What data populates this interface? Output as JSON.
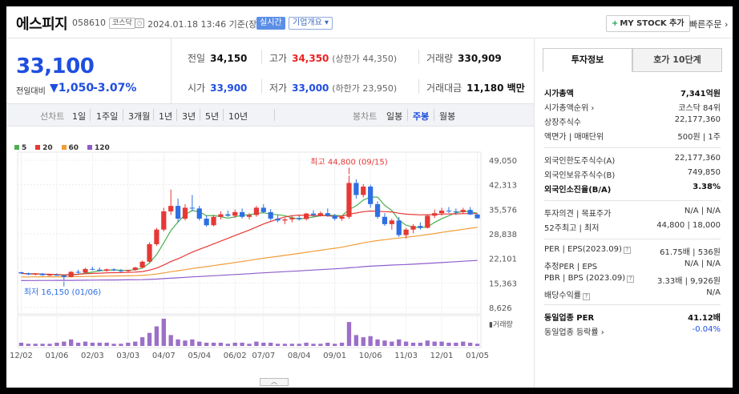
{
  "header": {
    "company": "에스피지",
    "code": "058610",
    "market": "코스닥",
    "datetime": "2024.01.18 13:46 기준(장중)",
    "realtime_label": "실시간",
    "overview_label": "기업개요 ▾",
    "mystock_label": "MY STOCK 추가",
    "quick_order_label": "빠른주문 ›"
  },
  "price": {
    "current": "33,100",
    "change_label": "전일대비",
    "change_arrow": "▼",
    "change_value": "1,050",
    "change_pct": "-3.07%"
  },
  "stats": {
    "prev_close": {
      "label": "전일",
      "value": "34,150"
    },
    "high": {
      "label": "고가",
      "value": "34,350",
      "sub": "(상한가 44,350)"
    },
    "volume": {
      "label": "거래량",
      "value": "330,909"
    },
    "open": {
      "label": "시가",
      "value": "33,900"
    },
    "low": {
      "label": "저가",
      "value": "33,000",
      "sub": "(하한가 23,950)"
    },
    "amount": {
      "label": "거래대금",
      "value": "11,180 백만"
    }
  },
  "periods": {
    "line_label": "선차트",
    "line_options": [
      "1일",
      "1주일",
      "3개월",
      "1년",
      "3년",
      "5년",
      "10년"
    ],
    "candle_label": "봉차트",
    "candle_options": [
      "일봉",
      "주봉",
      "월봉"
    ],
    "selected": "주봉"
  },
  "chart_data": {
    "type": "candlestick",
    "legend": [
      {
        "name": "5",
        "color": "#4caf50"
      },
      {
        "name": "20",
        "color": "#e53935"
      },
      {
        "name": "60",
        "color": "#f29d38"
      },
      {
        "name": "120",
        "color": "#8e5ccc"
      }
    ],
    "y_ticks": [
      "49,050",
      "42,313",
      "35,576",
      "28,838",
      "22,101",
      "15,363",
      "8,626"
    ],
    "ylim": [
      8626,
      49050
    ],
    "x_labels": [
      "12/02",
      "01/06",
      "02/03",
      "03/03",
      "04/07",
      "05/04",
      "06/02",
      "07/07",
      "08/04",
      "09/01",
      "10/06",
      "11/03",
      "12/01",
      "01/05"
    ],
    "high_label": "최고 44,800 (09/15)",
    "low_label": "최저 16,150 (01/06)",
    "volume_label": "거래량",
    "colors": {
      "up": "#e53935",
      "down": "#2f6fe4",
      "ma5": "#4caf50",
      "ma20": "#e53935",
      "ma60": "#f29d38",
      "ma120": "#8e5ccc"
    },
    "candles": [
      [
        18300,
        18400,
        17800,
        18000
      ],
      [
        18000,
        18200,
        17500,
        17700
      ],
      [
        17700,
        18000,
        17400,
        17900
      ],
      [
        17900,
        18100,
        17300,
        17500
      ],
      [
        17500,
        17800,
        17200,
        17600
      ],
      [
        17600,
        18000,
        17300,
        17400
      ],
      [
        17400,
        17600,
        16150,
        17000
      ],
      [
        17000,
        18600,
        16900,
        18400
      ],
      [
        18400,
        19000,
        17900,
        18200
      ],
      [
        18200,
        19500,
        18000,
        19200
      ],
      [
        19200,
        19800,
        18800,
        19000
      ],
      [
        19000,
        19600,
        18500,
        18700
      ],
      [
        18700,
        19300,
        18400,
        19100
      ],
      [
        19100,
        19400,
        18600,
        18800
      ],
      [
        18800,
        19200,
        18300,
        18600
      ],
      [
        18600,
        19000,
        18200,
        18900
      ],
      [
        18900,
        19800,
        18700,
        19600
      ],
      [
        19600,
        21500,
        19400,
        21200
      ],
      [
        21200,
        26500,
        21000,
        26000
      ],
      [
        26000,
        30500,
        25500,
        30000
      ],
      [
        30000,
        36000,
        29500,
        35000
      ],
      [
        35000,
        41000,
        34000,
        36500
      ],
      [
        36500,
        38500,
        32000,
        33000
      ],
      [
        33000,
        37000,
        32500,
        36000
      ],
      [
        36000,
        39500,
        35000,
        35800
      ],
      [
        35800,
        36500,
        32500,
        33000
      ],
      [
        33000,
        33800,
        30800,
        31200
      ],
      [
        31200,
        34000,
        30900,
        33500
      ],
      [
        33500,
        35000,
        32800,
        34200
      ],
      [
        34200,
        35200,
        33500,
        33800
      ],
      [
        33800,
        35500,
        33200,
        34800
      ],
      [
        34800,
        35800,
        33000,
        33500
      ],
      [
        33500,
        34500,
        32800,
        34000
      ],
      [
        34000,
        36500,
        33500,
        36000
      ],
      [
        36000,
        37000,
        34500,
        34800
      ],
      [
        34800,
        35600,
        32500,
        33000
      ],
      [
        33000,
        34000,
        32000,
        32500
      ],
      [
        32500,
        33200,
        31500,
        32800
      ],
      [
        32800,
        33800,
        32000,
        33200
      ],
      [
        33200,
        33800,
        32500,
        32900
      ],
      [
        32900,
        34600,
        32500,
        34400
      ],
      [
        34400,
        35300,
        33500,
        34000
      ],
      [
        34000,
        35000,
        33600,
        34500
      ],
      [
        34500,
        35800,
        33500,
        33800
      ],
      [
        33800,
        34300,
        32500,
        33000
      ],
      [
        33000,
        33800,
        32400,
        33500
      ],
      [
        33500,
        44800,
        33000,
        42800
      ],
      [
        42800,
        43800,
        38500,
        39500
      ],
      [
        39500,
        42500,
        38800,
        41800
      ],
      [
        41800,
        42300,
        36000,
        37000
      ],
      [
        37000,
        37800,
        33000,
        33500
      ],
      [
        33500,
        34500,
        31000,
        31500
      ],
      [
        31500,
        33000,
        30000,
        32500
      ],
      [
        32500,
        33500,
        28000,
        28500
      ],
      [
        28500,
        30500,
        27500,
        30000
      ],
      [
        30000,
        31500,
        29000,
        31000
      ],
      [
        31000,
        32000,
        30000,
        30500
      ],
      [
        30500,
        34000,
        30300,
        33800
      ],
      [
        33800,
        35500,
        33200,
        34500
      ],
      [
        34500,
        36000,
        33800,
        35200
      ],
      [
        35200,
        36200,
        34500,
        35000
      ],
      [
        35000,
        35800,
        34000,
        34800
      ],
      [
        34800,
        36000,
        34300,
        35400
      ],
      [
        35400,
        36200,
        34000,
        34150
      ],
      [
        34150,
        34350,
        33000,
        33100
      ]
    ],
    "volume": [
      3,
      2,
      2,
      2,
      2,
      3,
      4,
      6,
      3,
      4,
      3,
      3,
      3,
      2,
      2,
      3,
      4,
      8,
      12,
      18,
      25,
      10,
      6,
      5,
      6,
      4,
      3,
      3,
      3,
      2,
      3,
      3,
      2,
      4,
      3,
      3,
      2,
      2,
      2,
      2,
      3,
      2,
      2,
      3,
      2,
      3,
      22,
      10,
      8,
      9,
      6,
      5,
      4,
      6,
      4,
      3,
      3,
      5,
      4,
      4,
      3,
      3,
      4,
      3,
      2
    ]
  },
  "right_panel": {
    "tab_active": "투자정보",
    "tab_inactive": "호가 10단계",
    "rows": [
      {
        "l": "시가총액",
        "r": "7,341억원",
        "bold": true
      },
      {
        "l": "시가총액순위 ›",
        "r": "코스닥 84위"
      },
      {
        "l": "상장주식수",
        "r": "22,177,360"
      },
      {
        "l": "액면가 | 매매단위",
        "r": "500원 | 1주"
      },
      {
        "l": "외국인한도주식수(A)",
        "r": "22,177,360"
      },
      {
        "l": "외국인보유주식수(B)",
        "r": "749,850"
      },
      {
        "l": "외국인소진율(B/A)",
        "r": "3.38%",
        "bold": true
      },
      {
        "l": "투자의견 | 목표주가",
        "r": "N/A | N/A"
      },
      {
        "l": "52주최고 | 최저",
        "r": "44,800 | 18,000"
      },
      {
        "l": "PER | EPS(2023.09)",
        "r": "61.75배 | 536원"
      },
      {
        "l": "추정PER | EPS",
        "r": "N/A | N/A"
      },
      {
        "l": "PBR | BPS (2023.09)",
        "r": "3.33배 | 9,926원"
      },
      {
        "l": "배당수익률",
        "r": "N/A"
      },
      {
        "l": "동일업종 PER",
        "r": "41.12배",
        "bold": true
      },
      {
        "l": "동일업종 등락률 ›",
        "r": "-0.04%",
        "blue": true
      }
    ]
  }
}
